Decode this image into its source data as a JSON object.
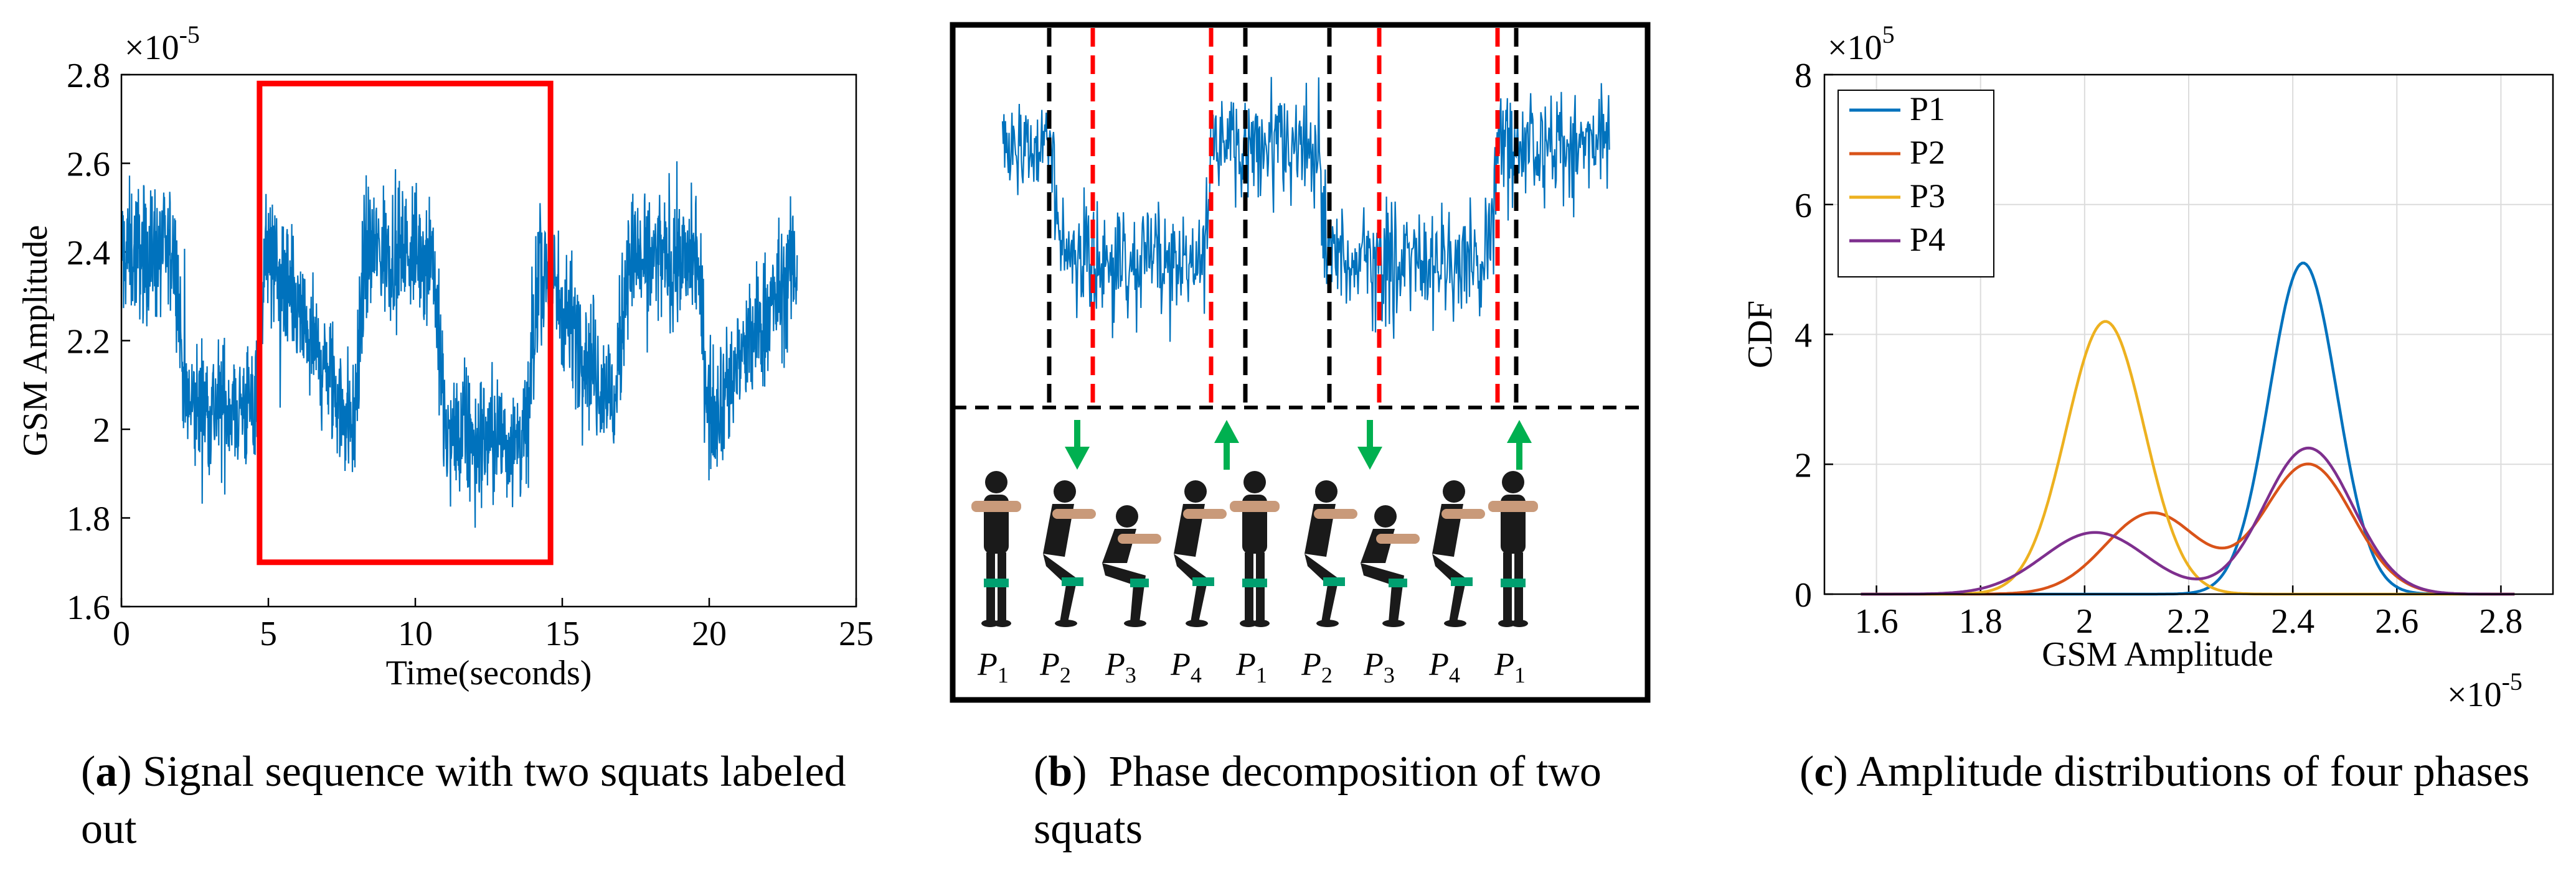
{
  "captions": {
    "a": {
      "label": "a",
      "text": "Signal sequence with two squats labeled out"
    },
    "b": {
      "label": "b",
      "text": "Phase decomposition of two squats"
    },
    "c": {
      "label": "c",
      "text": "Amplitude distributions of four phases"
    }
  },
  "colors": {
    "signal": "#0072BD",
    "box": "#FF0000",
    "boundary_black": "#000000",
    "boundary_red": "#FF0000",
    "arrow": "#00B050"
  },
  "icons": [
    "figure-standing-icon",
    "figure-squatting-icon",
    "arrow-down-icon",
    "arrow-up-icon"
  ],
  "panel_b": {
    "phase_labels": [
      "P",
      "P",
      "P",
      "P",
      "P",
      "P",
      "P",
      "P",
      "P"
    ],
    "phase_subscripts": [
      "1",
      "2",
      "3",
      "4",
      "1",
      "2",
      "3",
      "4",
      "1"
    ],
    "arrows": [
      "down",
      "up",
      "down",
      "up"
    ]
  },
  "chart_data": [
    {
      "id": "a",
      "type": "line",
      "xlabel": "Time(seconds)",
      "ylabel": "GSM Amplitude",
      "y_exponent": "×10",
      "y_exponent_power": "-5",
      "xlim": [
        0,
        25
      ],
      "ylim": [
        1.6,
        2.8
      ],
      "xticks": [
        "0",
        "5",
        "10",
        "15",
        "20",
        "25"
      ],
      "yticks": [
        "1.6",
        "1.8",
        "2",
        "2.2",
        "2.4",
        "2.6",
        "2.8"
      ],
      "grid": false,
      "series": [
        {
          "segments_time": [
            0,
            1.8,
            2.2,
            4.5,
            4.9,
            7.9,
            8.3,
            10.6,
            11.0,
            13.8,
            14.2,
            16.8,
            17.2,
            19.6,
            20.0,
            23.0
          ],
          "segments_level": [
            2.4,
            2.4,
            2.05,
            2.05,
            2.4,
            2.0,
            2.4,
            2.4,
            1.98,
            1.98,
            2.38,
            2.05,
            2.38,
            2.38,
            2.03,
            2.38
          ]
        }
      ],
      "annotation": {
        "type": "rectangle",
        "x": [
          4.7,
          14.6
        ],
        "y": [
          1.7,
          2.78
        ]
      }
    },
    {
      "id": "c",
      "type": "line",
      "xlabel": "GSM Amplitude",
      "ylabel": "CDF",
      "x_exponent": "×10",
      "x_exponent_power": "-5",
      "y_exponent": "×10",
      "y_exponent_power": "5",
      "xlim": [
        1.5,
        2.9
      ],
      "ylim": [
        0,
        8
      ],
      "xticks": [
        "1.6",
        "1.8",
        "2",
        "2.2",
        "2.4",
        "2.6",
        "2.8"
      ],
      "yticks": [
        "0",
        "2",
        "4",
        "6",
        "8"
      ],
      "grid": true,
      "legend": "top-left",
      "series": [
        {
          "name": "P1",
          "color": "#0072BD",
          "components": [
            {
              "mu": 2.42,
              "sigma": 0.065,
              "peak": 5.1
            }
          ]
        },
        {
          "name": "P2",
          "color": "#D95319",
          "components": [
            {
              "mu": 2.13,
              "sigma": 0.09,
              "peak": 1.25
            },
            {
              "mu": 2.43,
              "sigma": 0.085,
              "peak": 2.0
            }
          ]
        },
        {
          "name": "P3",
          "color": "#EDB120",
          "components": [
            {
              "mu": 2.04,
              "sigma": 0.075,
              "peak": 4.2
            }
          ]
        },
        {
          "name": "P4",
          "color": "#7E2F8E",
          "components": [
            {
              "mu": 2.02,
              "sigma": 0.1,
              "peak": 0.95
            },
            {
              "mu": 2.43,
              "sigma": 0.085,
              "peak": 2.25
            }
          ]
        }
      ]
    }
  ]
}
